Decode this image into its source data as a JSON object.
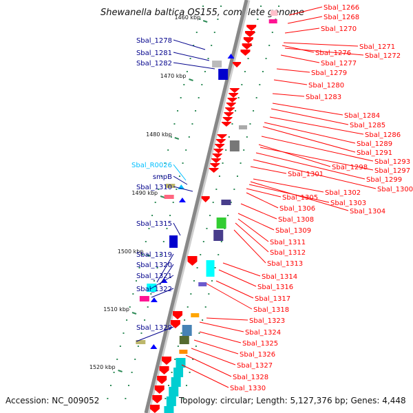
{
  "title": "Shewanella baltica OS155, complete genome",
  "accession": "Accession: NC_009052",
  "topology": "Topology: circular; Length: 5,127,376 bp; Genes: 4,448",
  "colors": {
    "left_label": "#00008b",
    "rna_label": "#00bfff",
    "right_label": "#ff0000",
    "backbone": "#888888",
    "tick": "#2e8b57"
  },
  "scale_marks": [
    "1460 kbp",
    "1470 kbp",
    "1480 kbp",
    "1490 kbp",
    "1500 kbp",
    "1510 kbp",
    "1520 kbp"
  ],
  "left_labels": [
    "Sbal_1278",
    "Sbal_1281",
    "Sbal_1282",
    "Sbal_R0026",
    "smpB",
    "Sbal_1310",
    "Sbal_1315",
    "Sbal_1319",
    "Sbal_1320",
    "Sbal_1321",
    "Sbal_1322",
    "Sbal_1329"
  ],
  "right_labels": [
    "Sbal_1266",
    "Sbal_1268",
    "Sbal_1270",
    "Sbal_1271",
    "Sbal_1276",
    "Sbal_1272",
    "Sbal_1277",
    "Sbal_1279",
    "Sbal_1280",
    "Sbal_1283",
    "Sbal_1284",
    "Sbal_1285",
    "Sbal_1286",
    "Sbal_1289",
    "Sbal_1291",
    "Sbal_1293",
    "Sbal_1298",
    "Sbal_1297",
    "Sbal_1301",
    "Sbal_1299",
    "Sbal_1300",
    "Sbal_1302",
    "Sbal_1305",
    "Sbal_1303",
    "Sbal_1306",
    "Sbal_1304",
    "Sbal_1308",
    "Sbal_1309",
    "Sbal_1311",
    "Sbal_1312",
    "Sbal_1313",
    "Sbal_1314",
    "Sbal_1316",
    "Sbal_1317",
    "Sbal_1318",
    "Sbal_1323",
    "Sbal_1324",
    "Sbal_1325",
    "Sbal_1326",
    "Sbal_1327",
    "Sbal_1328",
    "Sbal_1330"
  ]
}
